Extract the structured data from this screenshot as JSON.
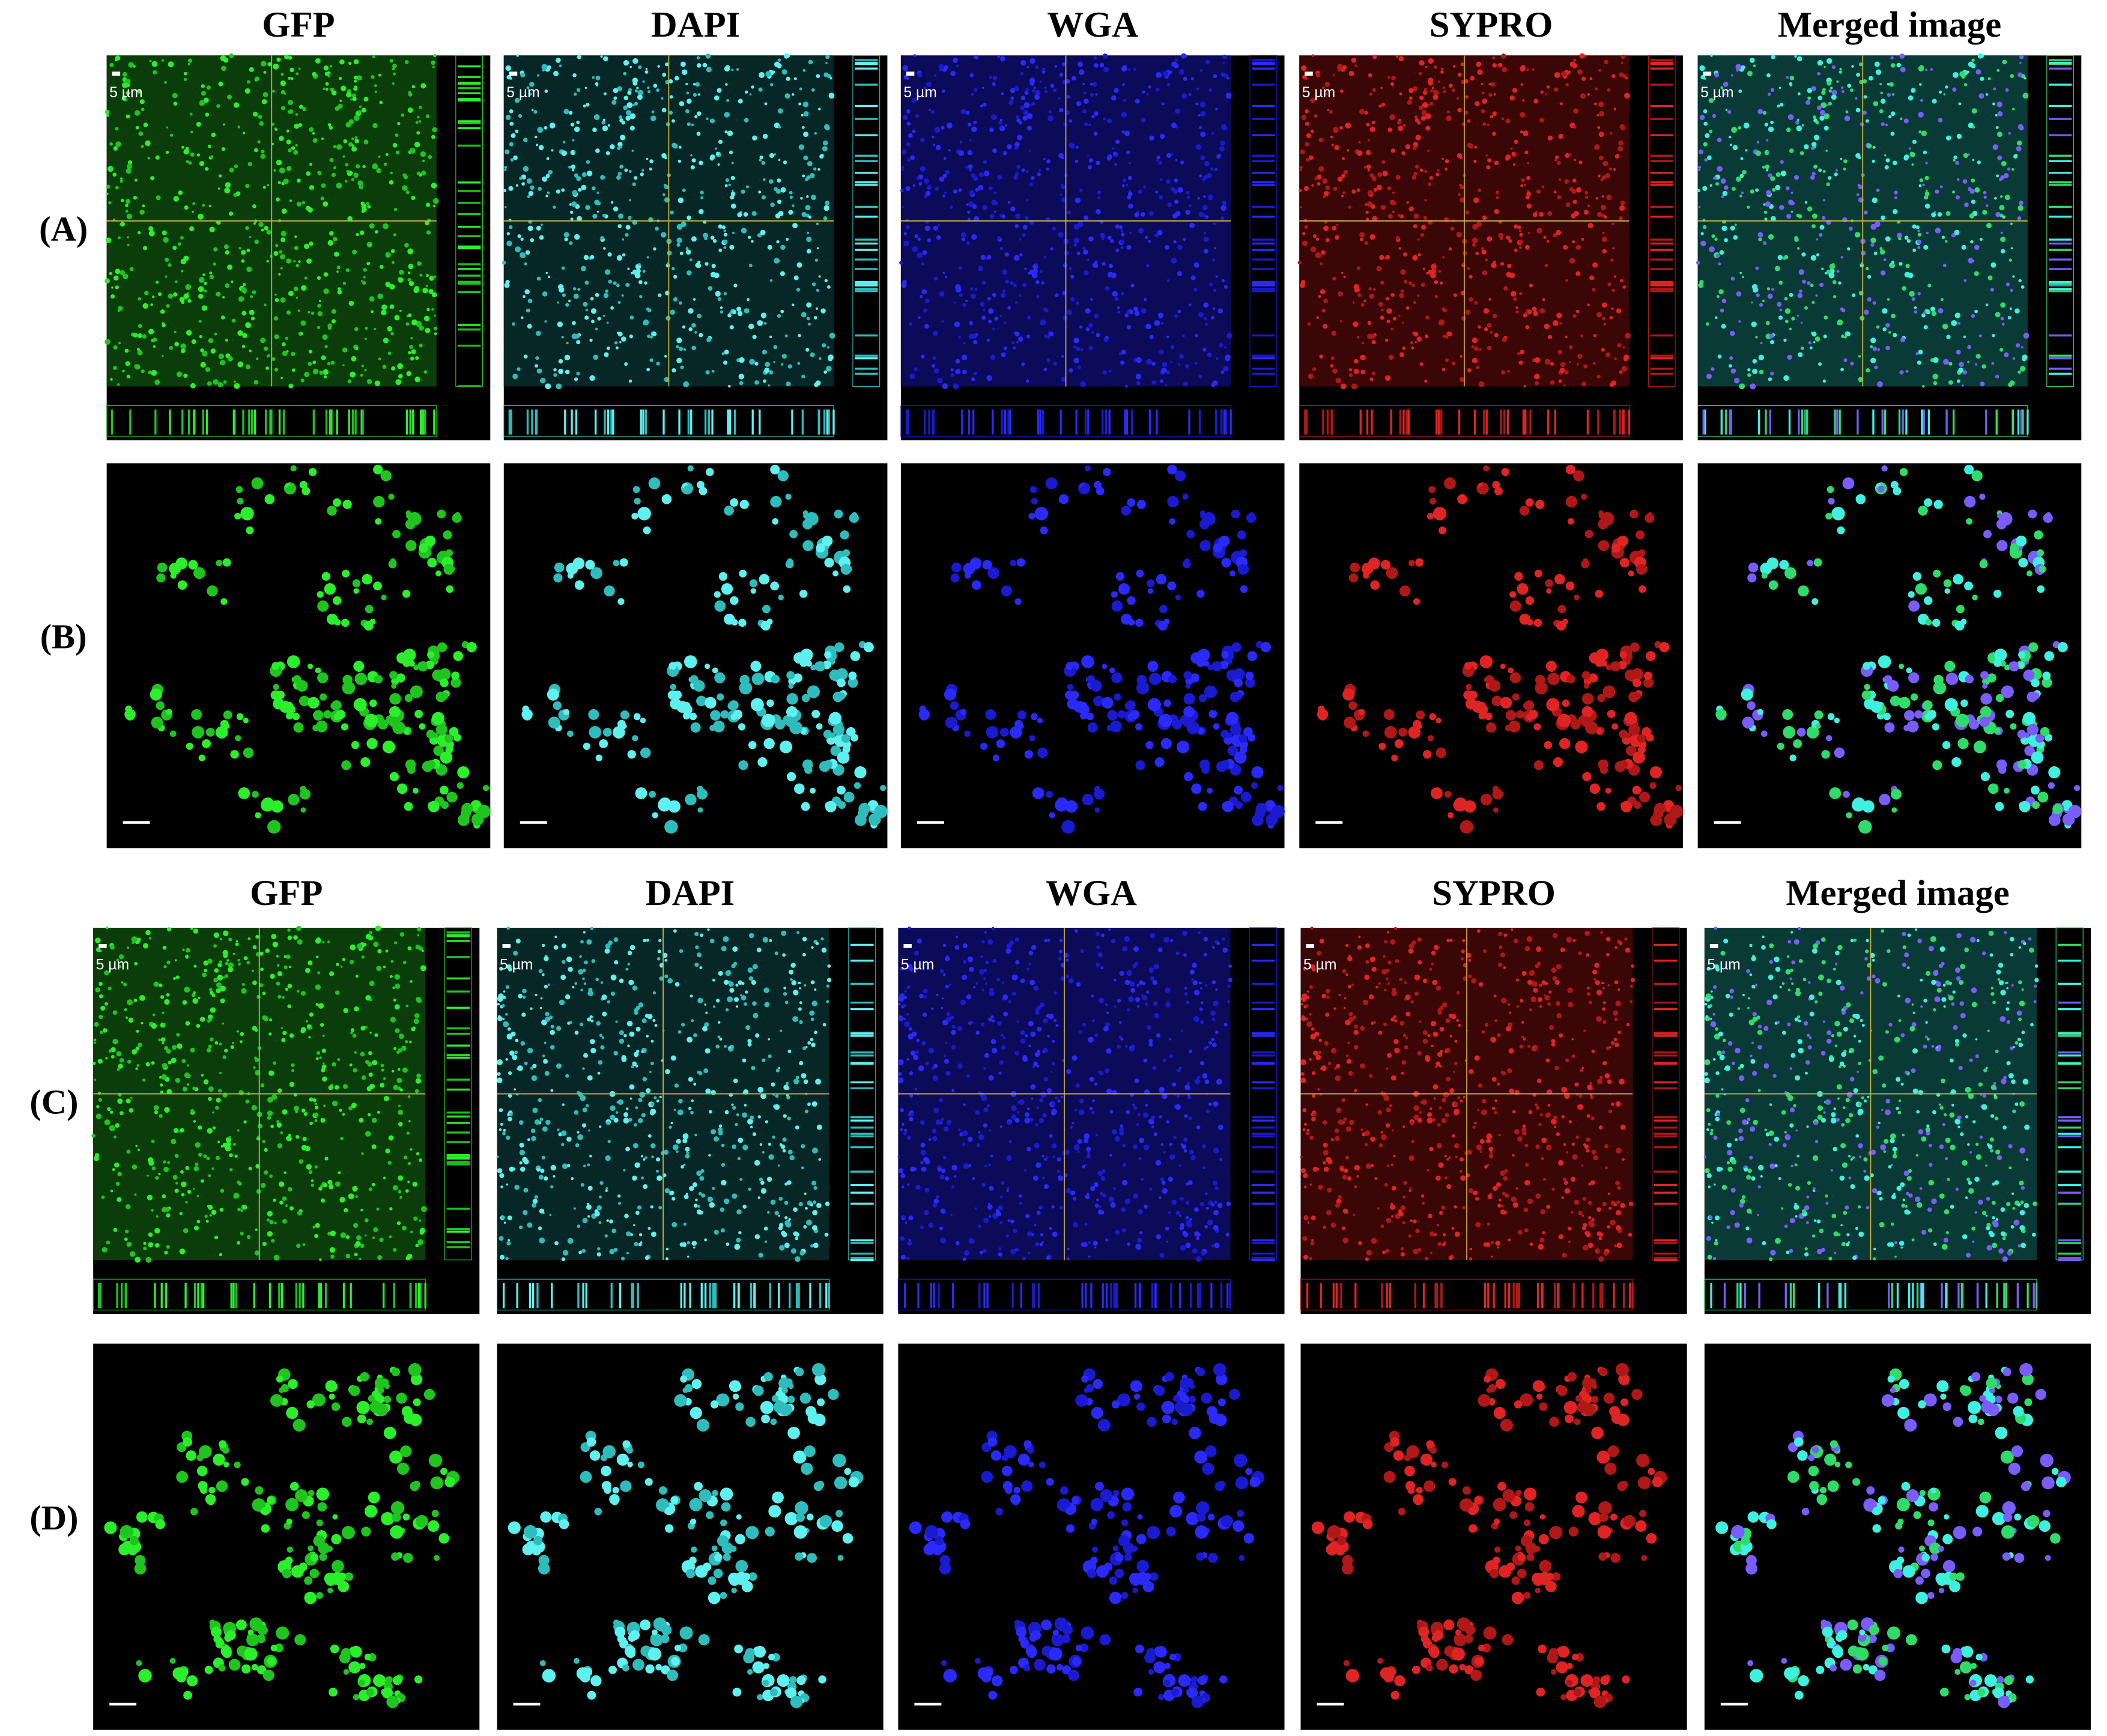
{
  "blocks": [
    {
      "headers": [
        "GFP",
        "DAPI",
        "WGA",
        "SYPRO",
        "Merged image"
      ],
      "rows": [
        "(A)",
        "(B)"
      ],
      "scale_label": "5 µm"
    },
    {
      "headers": [
        "GFP",
        "DAPI",
        "WGA",
        "SYPRO",
        "Merged image"
      ],
      "rows": [
        "(C)",
        "(D)"
      ],
      "scale_label": "5 µm"
    }
  ]
}
